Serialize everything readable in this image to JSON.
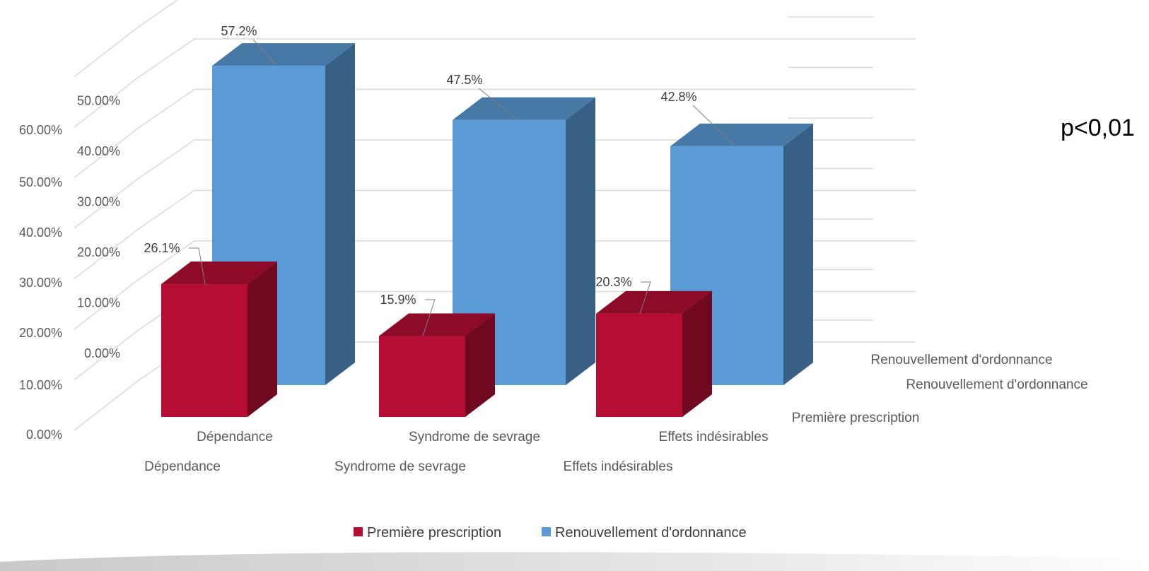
{
  "chart_data": {
    "type": "bar",
    "categories": [
      "Dépendance",
      "Syndrome de sevrage",
      "Effets indésirables"
    ],
    "series": [
      {
        "name": "Première prescription",
        "values": [
          26.1,
          15.9,
          20.3
        ],
        "color": "#b50d33"
      },
      {
        "name": "Renouvellement d'ordonnance",
        "values": [
          57.2,
          47.5,
          42.8
        ],
        "color": "#5b9bd5"
      }
    ],
    "value_labels": [
      [
        "26.1%",
        "15.9%",
        "20.3%"
      ],
      [
        "57.2%",
        "47.5%",
        "42.8%"
      ]
    ],
    "y_ticks_front": [
      "0.00%",
      "10.00%",
      "20.00%",
      "30.00%",
      "40.00%",
      "50.00%",
      "60.00%"
    ],
    "y_ticks_back": [
      "0.00%",
      "10.00%",
      "20.00%",
      "30.00%",
      "40.00%",
      "50.00%",
      "60.00%"
    ],
    "ylim": [
      0,
      60
    ],
    "depth_labels": [
      "Première prescription",
      "Renouvellement d'ordonnance",
      "Renouvellement d'ordonnance"
    ],
    "legend": [
      "Première prescription",
      "Renouvellement d'ordonnance",
      "Renouvellement d'ordonnance"
    ],
    "legend_position": "bottom",
    "annotation": "p<0,01",
    "grid": true,
    "xlabel": "",
    "ylabel": ""
  }
}
